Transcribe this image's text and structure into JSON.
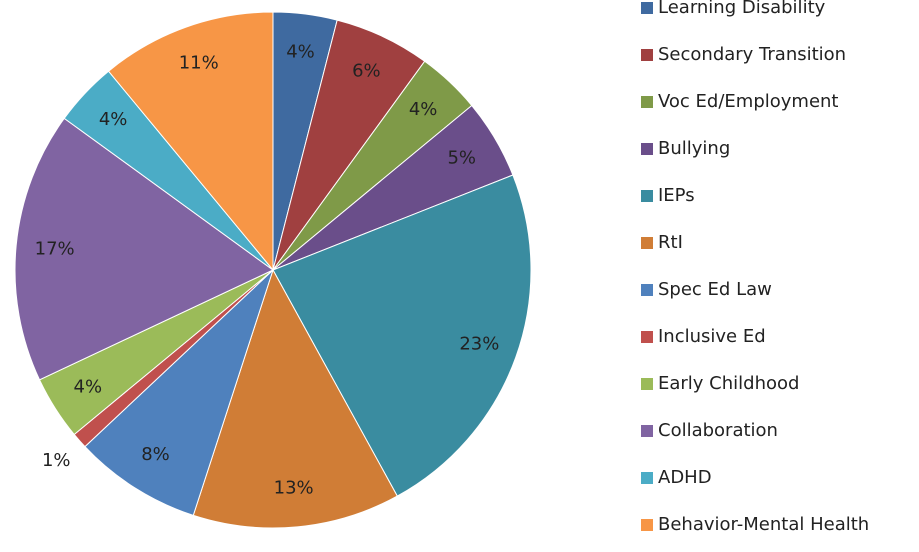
{
  "chart_data": {
    "type": "pie",
    "categories": [
      "Learning Disability",
      "Secondary Transition",
      "Voc Ed/Employment",
      "Bullying",
      "IEPs",
      "RtI",
      "Spec Ed Law",
      "Inclusive Ed",
      "Early Childhood",
      "Collaboration",
      "ADHD",
      "Behavior-Mental Health"
    ],
    "values": [
      4,
      6,
      4,
      5,
      23,
      13,
      8,
      1,
      4,
      17,
      4,
      11
    ],
    "value_labels": [
      "4%",
      "6%",
      "4%",
      "5%",
      "23%",
      "13%",
      "8%",
      "1%",
      "4%",
      "17%",
      "4%",
      "11%"
    ],
    "colors": [
      "#3F6AA0",
      "#A04040",
      "#7F9A48",
      "#6A4E8A",
      "#3A8CA0",
      "#D07D36",
      "#4F81BD",
      "#C0504D",
      "#9BBB59",
      "#8064A2",
      "#4BACC6",
      "#F79646"
    ],
    "legend": "right"
  }
}
